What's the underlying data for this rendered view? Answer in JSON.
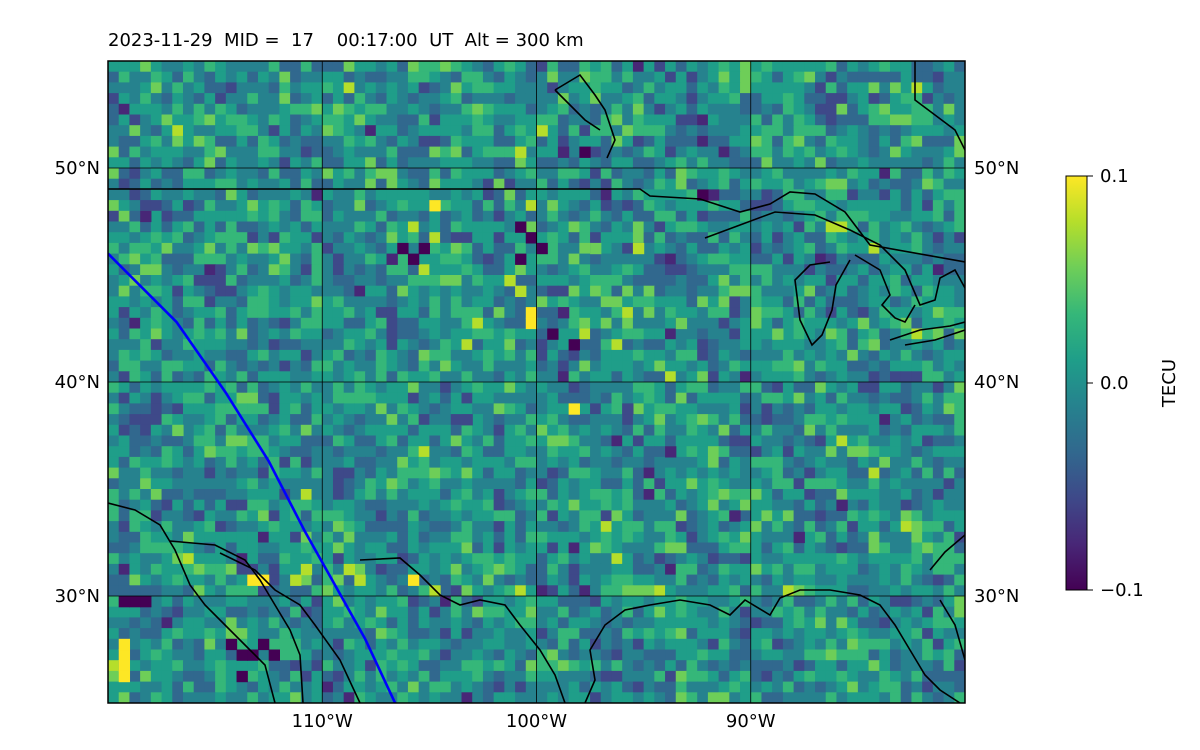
{
  "chart_data": {
    "type": "heatmap",
    "title": "2023-11-29  MID =  17    00:17:00  UT  Alt = 300 km",
    "projection": "map",
    "lon_range": [
      -120,
      -80
    ],
    "lat_range": [
      25,
      55
    ],
    "x_ticks": [
      {
        "value": -110,
        "label": "110°W"
      },
      {
        "value": -100,
        "label": "100°W"
      },
      {
        "value": -90,
        "label": "90°W"
      }
    ],
    "y_ticks": [
      {
        "value": 30,
        "label": "30°N"
      },
      {
        "value": 40,
        "label": "40°N"
      },
      {
        "value": 50,
        "label": "50°N"
      }
    ],
    "grid": true,
    "colormap": "viridis",
    "colorbar": {
      "label": "TECU",
      "range": [
        -0.1,
        0.1
      ],
      "ticks": [
        {
          "value": 0.1,
          "label": "0.1"
        },
        {
          "value": 0.0,
          "label": "0.0"
        },
        {
          "value": -0.1,
          "label": "−0.1"
        }
      ],
      "colors": [
        "#440154",
        "#482777",
        "#3e4989",
        "#31688e",
        "#26828e",
        "#1f9e89",
        "#35b779",
        "#6ece58",
        "#b5de2b",
        "#fde725"
      ]
    },
    "track": {
      "color": "#0000ff",
      "points": [
        [
          -120,
          46
        ],
        [
          -116.8,
          42.8
        ],
        [
          -114.5,
          39.5
        ],
        [
          -112.5,
          36.3
        ],
        [
          -110.8,
          33.0
        ],
        [
          -109.4,
          30.5
        ],
        [
          -108.0,
          28.0
        ],
        [
          -106.6,
          25.0
        ]
      ]
    },
    "anomaly_cells": [
      {
        "lon": -119.5,
        "lat": 27.0,
        "v": 0.1
      },
      {
        "lon": -119.5,
        "lat": 26.5,
        "v": 0.1
      },
      {
        "lon": -119.5,
        "lat": 26.0,
        "v": 0.1
      },
      {
        "lon": -119.5,
        "lat": 27.5,
        "v": 0.1
      },
      {
        "lon": -119.0,
        "lat": 29.5,
        "v": -0.1
      },
      {
        "lon": -118.5,
        "lat": 29.5,
        "v": -0.1
      },
      {
        "lon": -119.5,
        "lat": 29.5,
        "v": -0.1
      },
      {
        "lon": -114.5,
        "lat": 27.5,
        "v": -0.1
      },
      {
        "lon": -114.0,
        "lat": 27.0,
        "v": -0.1
      },
      {
        "lon": -113.0,
        "lat": 27.5,
        "v": -0.1
      },
      {
        "lon": -113.5,
        "lat": 27.0,
        "v": -0.1
      },
      {
        "lon": -112.5,
        "lat": 27.0,
        "v": -0.1
      },
      {
        "lon": -114.0,
        "lat": 26.0,
        "v": -0.1
      },
      {
        "lon": -113.5,
        "lat": 30.5,
        "v": 0.09
      },
      {
        "lon": -113.0,
        "lat": 30.5,
        "v": 0.09
      },
      {
        "lon": -111.5,
        "lat": 30.5,
        "v": 0.08
      },
      {
        "lon": -111.0,
        "lat": 31.0,
        "v": 0.08
      },
      {
        "lon": -109.0,
        "lat": 31.0,
        "v": 0.08
      },
      {
        "lon": -108.5,
        "lat": 30.5,
        "v": 0.07
      },
      {
        "lon": -106.0,
        "lat": 30.5,
        "v": 0.09
      },
      {
        "lon": -105.0,
        "lat": 30.0,
        "v": 0.07
      },
      {
        "lon": -100.5,
        "lat": 43.0,
        "v": 0.09
      },
      {
        "lon": -101.5,
        "lat": 44.5,
        "v": 0.07
      },
      {
        "lon": -101.0,
        "lat": 44.0,
        "v": 0.08
      },
      {
        "lon": -100.5,
        "lat": 42.5,
        "v": 0.09
      },
      {
        "lon": -98.5,
        "lat": 38.5,
        "v": 0.09
      },
      {
        "lon": -101.0,
        "lat": 50.5,
        "v": 0.08
      },
      {
        "lon": -100.0,
        "lat": 51.5,
        "v": 0.07
      },
      {
        "lon": -105.0,
        "lat": 48.0,
        "v": 0.1
      },
      {
        "lon": -97.5,
        "lat": 46.0,
        "v": 0.06
      },
      {
        "lon": -95.5,
        "lat": 46.0,
        "v": 0.07
      },
      {
        "lon": -93.5,
        "lat": 42.5,
        "v": 0.06
      },
      {
        "lon": -85.0,
        "lat": 42.5,
        "v": 0.06
      },
      {
        "lon": -106.5,
        "lat": 46.0,
        "v": -0.09
      },
      {
        "lon": -106.0,
        "lat": 45.5,
        "v": -0.1
      },
      {
        "lon": -105.5,
        "lat": 46.0,
        "v": -0.09
      },
      {
        "lon": -107.0,
        "lat": 45.5,
        "v": -0.08
      },
      {
        "lon": -101.0,
        "lat": 47.0,
        "v": -0.09
      },
      {
        "lon": -100.5,
        "lat": 46.5,
        "v": -0.1
      },
      {
        "lon": -100.0,
        "lat": 46.0,
        "v": -0.09
      },
      {
        "lon": -101.0,
        "lat": 45.5,
        "v": -0.1
      },
      {
        "lon": -99.5,
        "lat": 42.0,
        "v": -0.1
      },
      {
        "lon": -98.5,
        "lat": 41.5,
        "v": -0.09
      },
      {
        "lon": -99.0,
        "lat": 43.0,
        "v": -0.08
      },
      {
        "lon": -98.0,
        "lat": 50.5,
        "v": -0.09
      },
      {
        "lon": -99.0,
        "lat": 50.5,
        "v": -0.08
      },
      {
        "lon": -92.0,
        "lat": 48.5,
        "v": -0.08
      },
      {
        "lon": -92.5,
        "lat": 48.5,
        "v": -0.09
      },
      {
        "lon": -118.5,
        "lat": 47.5,
        "v": -0.08
      },
      {
        "lon": -110.5,
        "lat": 48.5,
        "v": -0.08
      },
      {
        "lon": -94.0,
        "lat": 36.5,
        "v": -0.07
      },
      {
        "lon": -86.0,
        "lat": 34.0,
        "v": -0.07
      },
      {
        "lon": -88.0,
        "lat": 32.5,
        "v": -0.07
      },
      {
        "lon": -91.0,
        "lat": 33.5,
        "v": -0.07
      },
      {
        "lon": -103.5,
        "lat": 38.0,
        "v": -0.06
      },
      {
        "lon": -96.0,
        "lat": 38.5,
        "v": -0.06
      },
      {
        "lon": -117.0,
        "lat": 37.5,
        "v": 0.05
      },
      {
        "lon": -115.5,
        "lat": 36.5,
        "v": 0.05
      },
      {
        "lon": -84.5,
        "lat": 41.5,
        "v": 0.05
      },
      {
        "lon": -89.0,
        "lat": 42.0,
        "v": 0.05
      }
    ]
  }
}
